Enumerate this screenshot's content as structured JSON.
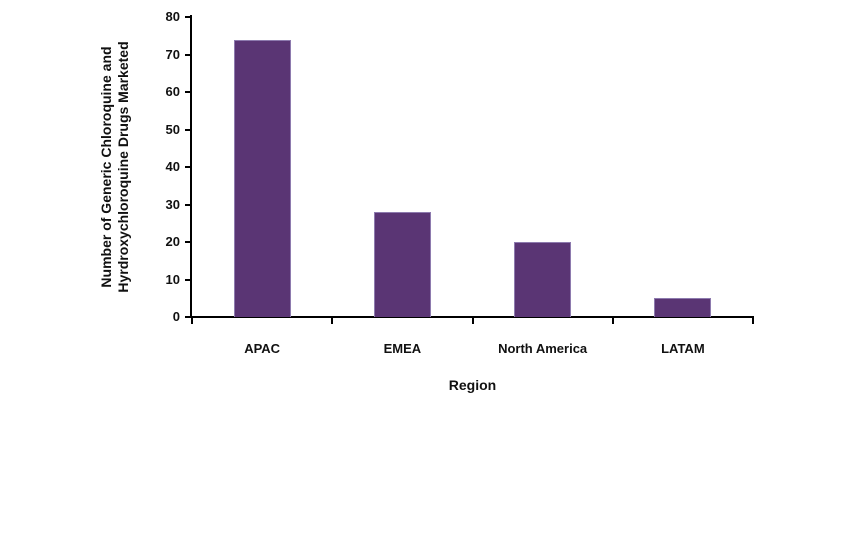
{
  "page": {
    "background_color": "#ffffff"
  },
  "chart_data": {
    "type": "bar",
    "title": "",
    "categories": [
      "APAC",
      "EMEA",
      "North America",
      "LATAM"
    ],
    "values": [
      74,
      28,
      20,
      5
    ],
    "xlabel": "Region",
    "ylabel": "Number of Generic Chloroquine and Hyrdroxychloroquine Drugs Marketed",
    "ylabel_lines": [
      "Number of Generic Chloroquine and",
      "Hyrdroxychloroquine Drugs Marketed"
    ],
    "ylim": [
      0,
      80
    ],
    "ytick_step": 10,
    "ytick_labels": [
      "0",
      "10",
      "20",
      "30",
      "40",
      "50",
      "60",
      "70",
      "80"
    ],
    "grid": false,
    "legend": false,
    "bar_color": "#5a3574",
    "bar_border_color": "#8d7aae",
    "axis_color": "#000000",
    "text_color": "#111111"
  }
}
